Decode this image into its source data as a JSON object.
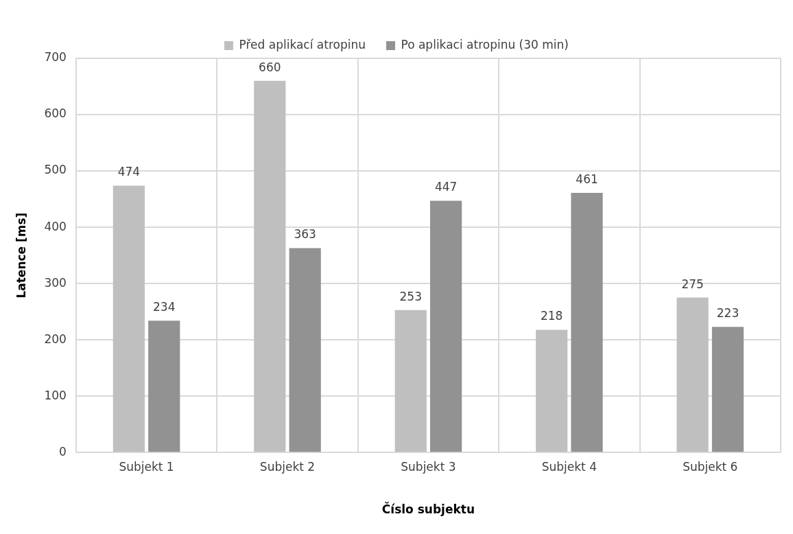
{
  "chart_data": {
    "type": "bar",
    "categories": [
      "Subjekt 1",
      "Subjekt 2",
      "Subjekt 3",
      "Subjekt 4",
      "Subjekt 6"
    ],
    "series": [
      {
        "name": "Před aplikací atropinu",
        "color": "#bfbfbf",
        "values": [
          474,
          660,
          253,
          218,
          275
        ]
      },
      {
        "name": "Po aplikaci atropinu (30 min)",
        "color": "#929292",
        "values": [
          234,
          363,
          447,
          461,
          223
        ]
      }
    ],
    "xlabel": "Číslo subjektu",
    "ylabel": "Latence [ms]",
    "ylim": [
      0,
      700
    ],
    "yticks": [
      0,
      100,
      200,
      300,
      400,
      500,
      600,
      700
    ],
    "grid": true,
    "legend": "top",
    "data_labels": true
  }
}
